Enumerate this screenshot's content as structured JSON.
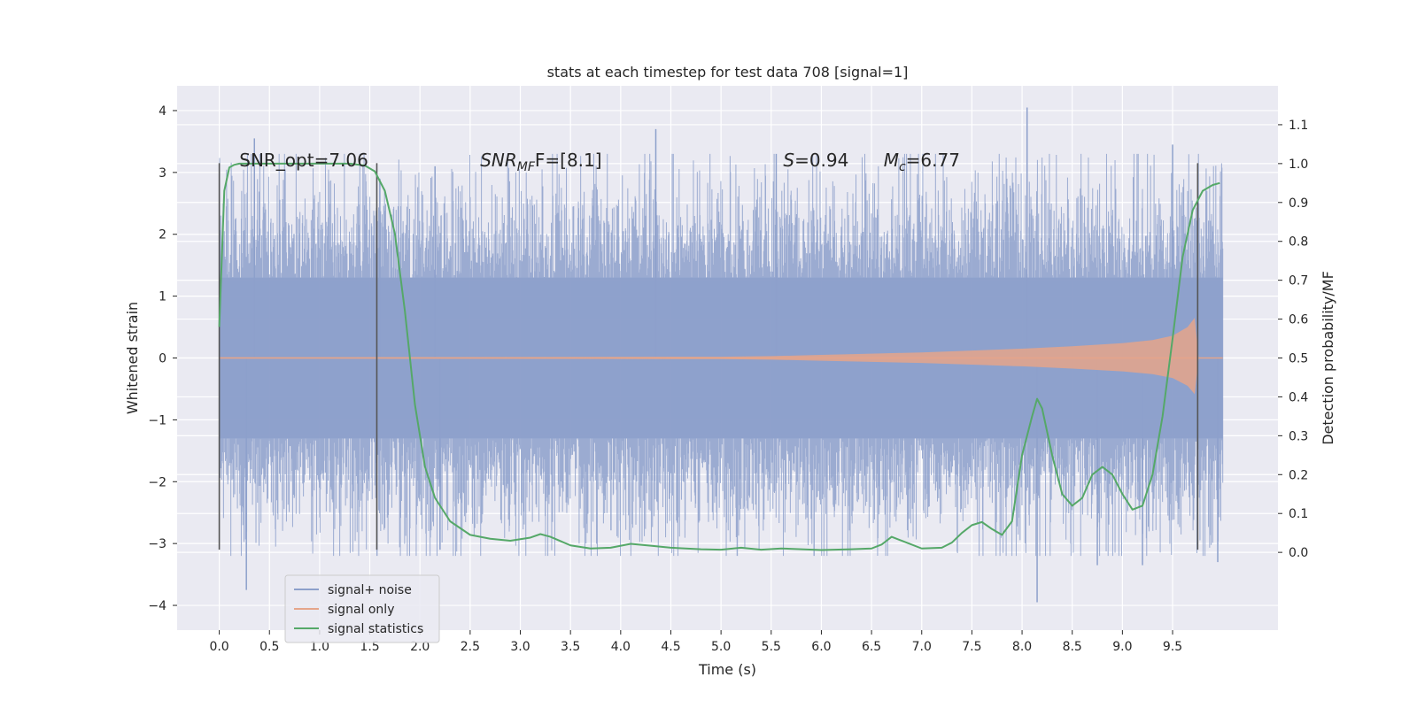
{
  "chart_data": {
    "type": "line",
    "title": "stats at each timestep for test data 708 [signal=1]",
    "xlabel": "Time (s)",
    "ylabel_left": "Whitened strain",
    "ylabel_right": "Detection probability/MF",
    "xlim": [
      -0.42,
      10.55
    ],
    "ylim_left": [
      -4.4,
      4.4
    ],
    "ylim_right": [
      -0.2,
      1.2
    ],
    "x_ticks": [
      0.0,
      0.5,
      1.0,
      1.5,
      2.0,
      2.5,
      3.0,
      3.5,
      4.0,
      4.5,
      5.0,
      5.5,
      6.0,
      6.5,
      7.0,
      7.5,
      8.0,
      8.5,
      9.0,
      9.5
    ],
    "x_tick_labels": [
      "0.0",
      "0.5",
      "1.0",
      "1.5",
      "2.0",
      "2.5",
      "3.0",
      "3.5",
      "4.0",
      "4.5",
      "5.0",
      "5.5",
      "6.0",
      "6.5",
      "7.0",
      "7.5",
      "8.0",
      "8.5",
      "9.0",
      "9.5"
    ],
    "y_left_ticks": [
      -4,
      -3,
      -2,
      -1,
      0,
      1,
      2,
      3,
      4
    ],
    "y_left_tick_labels": [
      "−4",
      "−3",
      "−2",
      "−1",
      "0",
      "1",
      "2",
      "3",
      "4"
    ],
    "y_right_ticks": [
      0.0,
      0.1,
      0.2,
      0.3,
      0.4,
      0.5,
      0.6,
      0.7,
      0.8,
      0.9,
      1.0,
      1.1
    ],
    "y_right_tick_labels": [
      "0.0",
      "0.1",
      "0.2",
      "0.3",
      "0.4",
      "0.5",
      "0.6",
      "0.7",
      "0.8",
      "0.9",
      "1.0",
      "1.1"
    ],
    "grid": true,
    "legend_position": "lower-left",
    "annotations": [
      {
        "text": "SNR_opt=7.06",
        "x": 0.2,
        "y": 3.2
      },
      {
        "text_main": "SNR",
        "text_sub": "MF",
        "text_after": "F=[8.1]",
        "x": 2.6,
        "y": 3.2
      },
      {
        "text_main": "S",
        "text_after": "=0.94",
        "x": 5.62,
        "y": 3.2
      },
      {
        "text_main": "M",
        "text_sub": "c",
        "text_after": "=6.77",
        "x": 6.62,
        "y": 3.2
      }
    ],
    "vlines": [
      {
        "x": 0.0,
        "y_range": [
          -3.1,
          3.15
        ]
      },
      {
        "x": 1.57,
        "y_range": [
          -3.1,
          3.15
        ]
      },
      {
        "x": 9.75,
        "y_range": [
          -3.1,
          3.15
        ]
      }
    ],
    "series": [
      {
        "name": "signal+ noise",
        "color": "#8da0cb",
        "x_range": [
          0.0,
          10.0
        ],
        "typical_envelope": [
          -1.3,
          1.3
        ],
        "peaks": [
          {
            "x": 0.35,
            "y": 3.55
          },
          {
            "x": 0.27,
            "y": -3.75
          },
          {
            "x": 1.6,
            "y": 2.9
          },
          {
            "x": 2.15,
            "y": 3.1
          },
          {
            "x": 2.2,
            "y": -3.1
          },
          {
            "x": 4.35,
            "y": 3.7
          },
          {
            "x": 5.55,
            "y": 3.3
          },
          {
            "x": 8.05,
            "y": 4.05
          },
          {
            "x": 8.15,
            "y": -3.95
          },
          {
            "x": 8.75,
            "y": -3.35
          },
          {
            "x": 9.5,
            "y": 3.45
          },
          {
            "x": 9.2,
            "y": -3.35
          },
          {
            "x": 9.95,
            "y": -3.3
          }
        ]
      },
      {
        "name": "signal only",
        "color": "#e5a58a",
        "x": [
          0.0,
          5.0,
          5.5,
          6.0,
          6.5,
          7.0,
          7.5,
          8.0,
          8.5,
          9.0,
          9.3,
          9.5,
          9.65,
          9.72,
          9.76,
          10.0
        ],
        "amplitude": [
          0.01,
          0.02,
          0.03,
          0.05,
          0.07,
          0.09,
          0.12,
          0.15,
          0.19,
          0.24,
          0.29,
          0.36,
          0.5,
          0.65,
          0.0,
          0.0
        ]
      },
      {
        "name": "signal statistics",
        "color": "#55a868",
        "axis": "right",
        "x": [
          0.0,
          0.05,
          0.1,
          0.15,
          0.2,
          0.3,
          0.5,
          1.0,
          1.3,
          1.45,
          1.55,
          1.65,
          1.75,
          1.85,
          1.95,
          2.05,
          2.15,
          2.3,
          2.5,
          2.7,
          2.9,
          3.1,
          3.2,
          3.3,
          3.5,
          3.7,
          3.9,
          4.1,
          4.3,
          4.5,
          4.8,
          5.0,
          5.2,
          5.4,
          5.6,
          5.8,
          6.0,
          6.3,
          6.5,
          6.6,
          6.7,
          6.8,
          7.0,
          7.2,
          7.3,
          7.4,
          7.5,
          7.6,
          7.7,
          7.8,
          7.9,
          8.0,
          8.1,
          8.15,
          8.2,
          8.3,
          8.4,
          8.5,
          8.6,
          8.7,
          8.8,
          8.9,
          9.0,
          9.1,
          9.2,
          9.3,
          9.4,
          9.5,
          9.6,
          9.7,
          9.8,
          9.9,
          9.97
        ],
        "y": [
          0.58,
          0.93,
          0.99,
          0.997,
          1.0,
          1.0,
          1.0,
          1.0,
          1.0,
          0.995,
          0.98,
          0.93,
          0.82,
          0.62,
          0.38,
          0.22,
          0.14,
          0.08,
          0.045,
          0.035,
          0.03,
          0.038,
          0.047,
          0.04,
          0.018,
          0.01,
          0.012,
          0.022,
          0.017,
          0.012,
          0.008,
          0.007,
          0.012,
          0.007,
          0.01,
          0.008,
          0.006,
          0.008,
          0.01,
          0.02,
          0.04,
          0.03,
          0.01,
          0.012,
          0.025,
          0.05,
          0.07,
          0.078,
          0.06,
          0.045,
          0.08,
          0.25,
          0.35,
          0.395,
          0.37,
          0.25,
          0.15,
          0.12,
          0.14,
          0.2,
          0.22,
          0.2,
          0.15,
          0.11,
          0.12,
          0.2,
          0.35,
          0.55,
          0.76,
          0.88,
          0.93,
          0.945,
          0.95
        ]
      }
    ]
  }
}
